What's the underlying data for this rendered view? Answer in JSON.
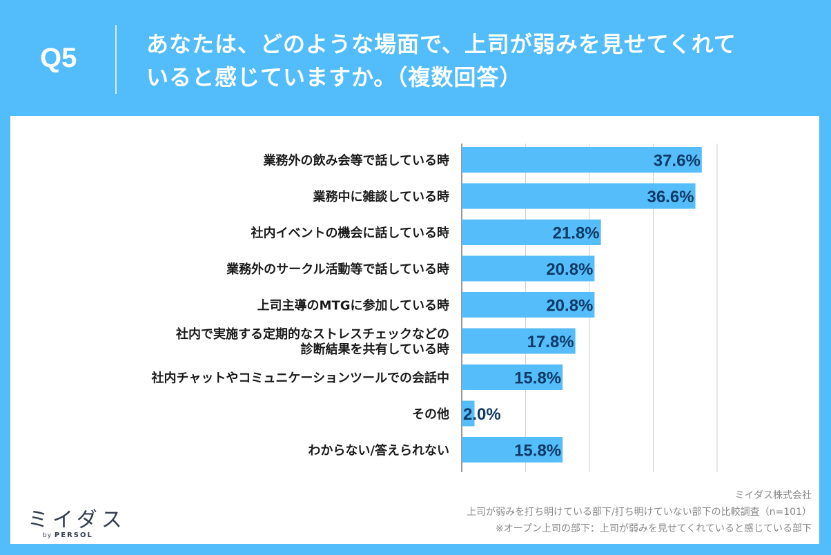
{
  "header": {
    "question_number": "Q5",
    "question_line1": "あなたは、どのような場面で、上司が弱みを見せてくれて",
    "question_line2": "いると感じていますか。（複数回答）"
  },
  "chart_data": {
    "type": "bar",
    "orientation": "horizontal",
    "categories": [
      [
        "業務外の飲み会等で話している時"
      ],
      [
        "業務中に雑談している時"
      ],
      [
        "社内イベントの機会に話している時"
      ],
      [
        "業務外のサークル活動等で話している時"
      ],
      [
        "上司主導のMTGに参加している時"
      ],
      [
        "社内で実施する定期的なストレスチェックなどの",
        "診断結果を共有している時"
      ],
      [
        "社内チャットやコミュニケーションツールでの会話中"
      ],
      [
        "その他"
      ],
      [
        "わからない/答えられない"
      ]
    ],
    "values": [
      37.6,
      36.6,
      21.8,
      20.8,
      20.8,
      17.8,
      15.8,
      2.0,
      15.8
    ],
    "value_labels": [
      "37.6%",
      "36.6%",
      "21.8%",
      "20.8%",
      "20.8%",
      "17.8%",
      "15.8%",
      "2.0%",
      "15.8%"
    ],
    "xlim": [
      0,
      40
    ],
    "gridlines": [
      0,
      10,
      20,
      30,
      40
    ],
    "bar_color": "#55bdf9",
    "label_color": "#0d3a66",
    "grid_color": "#d0d0d0"
  },
  "footer": {
    "company": "ミイダス株式会社",
    "survey": "上司が弱みを打ち明けている部下/打ち明けていない部下の比較調査（n=101）",
    "note": "※オープン上司の部下：上司が弱みを見せてくれていると感じている部下"
  },
  "logo": {
    "brand": "ミイダス",
    "by": "by",
    "partner": "PERSOL"
  }
}
